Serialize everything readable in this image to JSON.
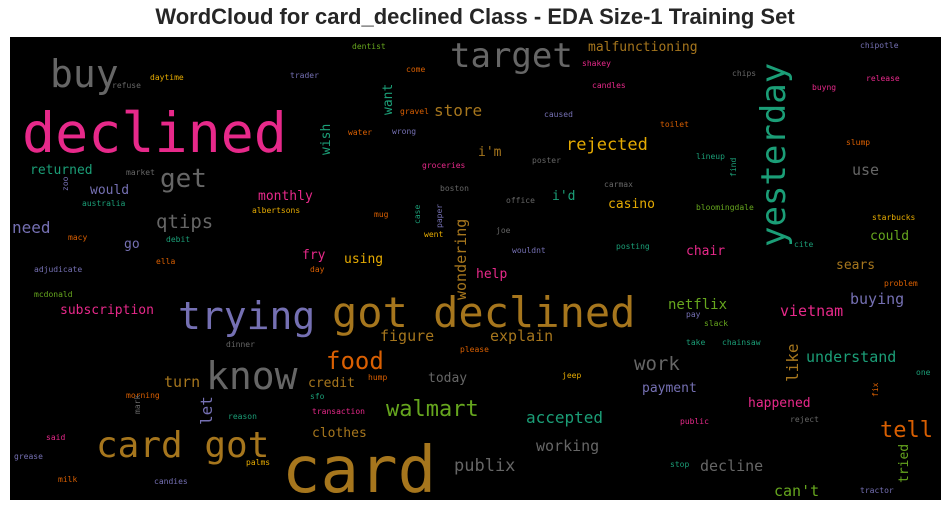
{
  "chart_data": {
    "type": "wordcloud",
    "title": "WordCloud for card_declined Class - EDA Size-1 Training Set",
    "colormap": [
      "#1b9e77",
      "#d95f02",
      "#7570b3",
      "#e7298a",
      "#66a61e",
      "#e6ab02",
      "#a6761d",
      "#666666"
    ],
    "words": [
      {
        "text": "card",
        "weight": 64,
        "color": "#a6761d"
      },
      {
        "text": "declined",
        "weight": 55,
        "color": "#e7298a"
      },
      {
        "text": "got declined",
        "weight": 42,
        "color": "#a6761d"
      },
      {
        "text": "trying",
        "weight": 38,
        "color": "#7570b3"
      },
      {
        "text": "buy",
        "weight": 38,
        "color": "#666666"
      },
      {
        "text": "know",
        "weight": 38,
        "color": "#666666"
      },
      {
        "text": "card got",
        "weight": 36,
        "color": "#a6761d"
      },
      {
        "text": "target",
        "weight": 34,
        "color": "#666666"
      },
      {
        "text": "yesterday",
        "weight": 34,
        "color": "#1b9e77"
      },
      {
        "text": "get",
        "weight": 26,
        "color": "#666666"
      },
      {
        "text": "food",
        "weight": 24,
        "color": "#d95f02"
      },
      {
        "text": "walmart",
        "weight": 22,
        "color": "#66a61e"
      },
      {
        "text": "tell",
        "weight": 22,
        "color": "#d95f02"
      },
      {
        "text": "qtips",
        "weight": 19,
        "color": "#666666"
      },
      {
        "text": "work",
        "weight": 19,
        "color": "#666666"
      },
      {
        "text": "publix",
        "weight": 17,
        "color": "#666666"
      },
      {
        "text": "rejected",
        "weight": 17,
        "color": "#e6ab02"
      },
      {
        "text": "need",
        "weight": 16,
        "color": "#7570b3"
      },
      {
        "text": "like",
        "weight": 16,
        "color": "#a6761d"
      },
      {
        "text": "store",
        "weight": 16,
        "color": "#a6761d"
      },
      {
        "text": "let",
        "weight": 16,
        "color": "#7570b3"
      },
      {
        "text": "accepted",
        "weight": 16,
        "color": "#1b9e77"
      },
      {
        "text": "understand",
        "weight": 15,
        "color": "#1b9e77"
      },
      {
        "text": "working",
        "weight": 15,
        "color": "#666666"
      },
      {
        "text": "figure",
        "weight": 15,
        "color": "#a6761d"
      },
      {
        "text": "explain",
        "weight": 15,
        "color": "#a6761d"
      },
      {
        "text": "vietnam",
        "weight": 15,
        "color": "#e7298a"
      },
      {
        "text": "buying",
        "weight": 15,
        "color": "#7570b3"
      },
      {
        "text": "decline",
        "weight": 15,
        "color": "#666666"
      },
      {
        "text": "can't",
        "weight": 15,
        "color": "#66a61e"
      },
      {
        "text": "wondering",
        "weight": 15,
        "color": "#a6761d"
      },
      {
        "text": "use",
        "weight": 15,
        "color": "#666666"
      },
      {
        "text": "turn",
        "weight": 15,
        "color": "#a6761d"
      },
      {
        "text": "netflix",
        "weight": 14,
        "color": "#66a61e"
      },
      {
        "text": "malfunctioning",
        "weight": 13,
        "color": "#a6761d"
      },
      {
        "text": "monthly",
        "weight": 13,
        "color": "#e7298a"
      },
      {
        "text": "returned",
        "weight": 13,
        "color": "#1b9e77"
      },
      {
        "text": "wish",
        "weight": 13,
        "color": "#1b9e77"
      },
      {
        "text": "want",
        "weight": 13,
        "color": "#1b9e77"
      },
      {
        "text": "i'm",
        "weight": 13,
        "color": "#a6761d"
      },
      {
        "text": "i'd",
        "weight": 13,
        "color": "#1b9e77"
      },
      {
        "text": "casino",
        "weight": 13,
        "color": "#e6ab02"
      },
      {
        "text": "would",
        "weight": 13,
        "color": "#7570b3"
      },
      {
        "text": "go",
        "weight": 13,
        "color": "#7570b3"
      },
      {
        "text": "chair",
        "weight": 13,
        "color": "#e7298a"
      },
      {
        "text": "could",
        "weight": 13,
        "color": "#66a61e"
      },
      {
        "text": "fry",
        "weight": 13,
        "color": "#e7298a"
      },
      {
        "text": "using",
        "weight": 13,
        "color": "#e6ab02"
      },
      {
        "text": "help",
        "weight": 13,
        "color": "#e7298a"
      },
      {
        "text": "sears",
        "weight": 13,
        "color": "#a6761d"
      },
      {
        "text": "subscription",
        "weight": 13,
        "color": "#e7298a"
      },
      {
        "text": "payment",
        "weight": 13,
        "color": "#7570b3"
      },
      {
        "text": "credit",
        "weight": 13,
        "color": "#a6761d"
      },
      {
        "text": "today",
        "weight": 13,
        "color": "#666666"
      },
      {
        "text": "happened",
        "weight": 13,
        "color": "#e7298a"
      },
      {
        "text": "clothes",
        "weight": 13,
        "color": "#a6761d"
      },
      {
        "text": "tried",
        "weight": 13,
        "color": "#66a61e"
      },
      {
        "text": "dentist",
        "weight": 8,
        "color": "#66a61e"
      },
      {
        "text": "refuse",
        "weight": 8,
        "color": "#666666"
      },
      {
        "text": "daytime",
        "weight": 8,
        "color": "#e6ab02"
      },
      {
        "text": "trader",
        "weight": 8,
        "color": "#7570b3"
      },
      {
        "text": "come",
        "weight": 8,
        "color": "#d95f02"
      },
      {
        "text": "shakey",
        "weight": 8,
        "color": "#e7298a"
      },
      {
        "text": "candles",
        "weight": 8,
        "color": "#e7298a"
      },
      {
        "text": "chipotle",
        "weight": 8,
        "color": "#7570b3"
      },
      {
        "text": "release",
        "weight": 8,
        "color": "#e7298a"
      },
      {
        "text": "chips",
        "weight": 8,
        "color": "#666666"
      },
      {
        "text": "buyng",
        "weight": 8,
        "color": "#e7298a"
      },
      {
        "text": "gravel",
        "weight": 8,
        "color": "#d95f02"
      },
      {
        "text": "caused",
        "weight": 8,
        "color": "#7570b3"
      },
      {
        "text": "toilet",
        "weight": 8,
        "color": "#d95f02"
      },
      {
        "text": "water",
        "weight": 8,
        "color": "#d95f02"
      },
      {
        "text": "wrong",
        "weight": 8,
        "color": "#7570b3"
      },
      {
        "text": "slump",
        "weight": 8,
        "color": "#d95f02"
      },
      {
        "text": "groceries",
        "weight": 8,
        "color": "#e7298a"
      },
      {
        "text": "poster",
        "weight": 8,
        "color": "#666666"
      },
      {
        "text": "lineup",
        "weight": 8,
        "color": "#1b9e77"
      },
      {
        "text": "find",
        "weight": 8,
        "color": "#1b9e77"
      },
      {
        "text": "market",
        "weight": 8,
        "color": "#666666"
      },
      {
        "text": "zoo",
        "weight": 8,
        "color": "#7570b3"
      },
      {
        "text": "australia",
        "weight": 8,
        "color": "#1b9e77"
      },
      {
        "text": "boston",
        "weight": 8,
        "color": "#666666"
      },
      {
        "text": "office",
        "weight": 8,
        "color": "#666666"
      },
      {
        "text": "carmax",
        "weight": 8,
        "color": "#666666"
      },
      {
        "text": "albertsons",
        "weight": 8,
        "color": "#e6ab02"
      },
      {
        "text": "mug",
        "weight": 8,
        "color": "#d95f02"
      },
      {
        "text": "case",
        "weight": 8,
        "color": "#1b9e77"
      },
      {
        "text": "paper",
        "weight": 8,
        "color": "#7570b3"
      },
      {
        "text": "bloomingdale",
        "weight": 8,
        "color": "#66a61e"
      },
      {
        "text": "starbucks",
        "weight": 8,
        "color": "#e6ab02"
      },
      {
        "text": "macy",
        "weight": 8,
        "color": "#d95f02"
      },
      {
        "text": "debit",
        "weight": 8,
        "color": "#1b9e77"
      },
      {
        "text": "went",
        "weight": 8,
        "color": "#e6ab02"
      },
      {
        "text": "joe",
        "weight": 8,
        "color": "#666666"
      },
      {
        "text": "posting",
        "weight": 8,
        "color": "#1b9e77"
      },
      {
        "text": "cite",
        "weight": 8,
        "color": "#1b9e77"
      },
      {
        "text": "ella",
        "weight": 8,
        "color": "#d95f02"
      },
      {
        "text": "wouldnt",
        "weight": 8,
        "color": "#7570b3"
      },
      {
        "text": "adjudicate",
        "weight": 8,
        "color": "#7570b3"
      },
      {
        "text": "day",
        "weight": 8,
        "color": "#d95f02"
      },
      {
        "text": "mcdonald",
        "weight": 8,
        "color": "#66a61e"
      },
      {
        "text": "problem",
        "weight": 8,
        "color": "#d95f02"
      },
      {
        "text": "pay",
        "weight": 8,
        "color": "#7570b3"
      },
      {
        "text": "slack",
        "weight": 8,
        "color": "#66a61e"
      },
      {
        "text": "dinner",
        "weight": 8,
        "color": "#666666"
      },
      {
        "text": "please",
        "weight": 8,
        "color": "#d95f02"
      },
      {
        "text": "take",
        "weight": 8,
        "color": "#1b9e77"
      },
      {
        "text": "chainsaw",
        "weight": 8,
        "color": "#1b9e77"
      },
      {
        "text": "hump",
        "weight": 8,
        "color": "#d95f02"
      },
      {
        "text": "jeep",
        "weight": 8,
        "color": "#e6ab02"
      },
      {
        "text": "one",
        "weight": 8,
        "color": "#1b9e77"
      },
      {
        "text": "sfo",
        "weight": 8,
        "color": "#1b9e77"
      },
      {
        "text": "morning",
        "weight": 8,
        "color": "#d95f02"
      },
      {
        "text": "mark",
        "weight": 8,
        "color": "#666666"
      },
      {
        "text": "reason",
        "weight": 8,
        "color": "#1b9e77"
      },
      {
        "text": "transaction",
        "weight": 8,
        "color": "#e7298a"
      },
      {
        "text": "fix",
        "weight": 8,
        "color": "#d95f02"
      },
      {
        "text": "public",
        "weight": 8,
        "color": "#e7298a"
      },
      {
        "text": "reject",
        "weight": 8,
        "color": "#666666"
      },
      {
        "text": "said",
        "weight": 8,
        "color": "#e7298a"
      },
      {
        "text": "palms",
        "weight": 8,
        "color": "#e6ab02"
      },
      {
        "text": "grease",
        "weight": 8,
        "color": "#7570b3"
      },
      {
        "text": "stop",
        "weight": 8,
        "color": "#1b9e77"
      },
      {
        "text": "milk",
        "weight": 8,
        "color": "#d95f02"
      },
      {
        "text": "candies",
        "weight": 8,
        "color": "#7570b3"
      },
      {
        "text": "tractor",
        "weight": 8,
        "color": "#7570b3"
      }
    ]
  }
}
